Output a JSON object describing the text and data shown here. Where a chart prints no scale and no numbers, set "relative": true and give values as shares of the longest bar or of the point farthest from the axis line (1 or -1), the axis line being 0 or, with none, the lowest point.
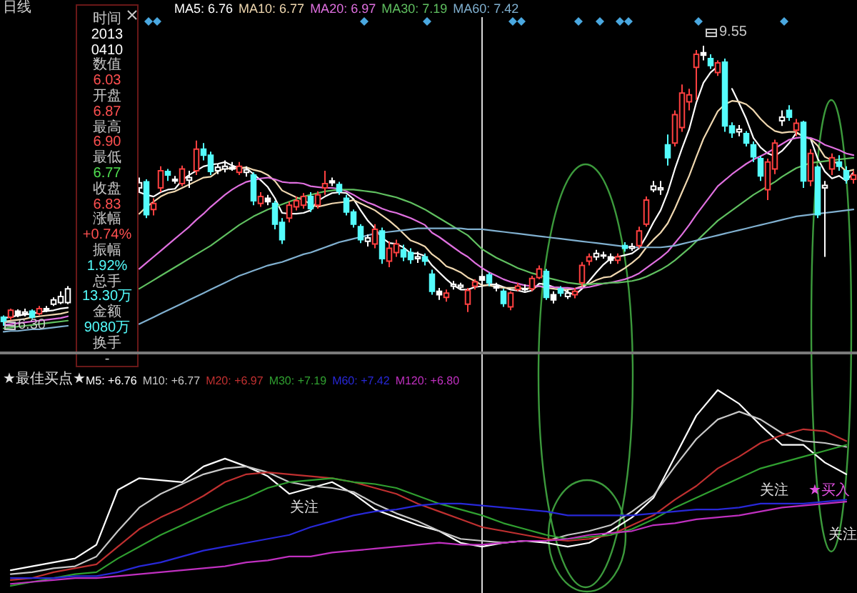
{
  "chart_data": [
    {
      "type": "candlestick",
      "title": "日线",
      "tick_labels": false,
      "legend": "top left",
      "categories": [
        null,
        null,
        null,
        null,
        null,
        null,
        null,
        null,
        null,
        null,
        null,
        null,
        null,
        null,
        null,
        null,
        null,
        null,
        null,
        null,
        null,
        null,
        null,
        null,
        null,
        null,
        null,
        null,
        null,
        null,
        null,
        null,
        null,
        null,
        null,
        null,
        null,
        null,
        null,
        null,
        null,
        null,
        null,
        null,
        null,
        null,
        null,
        null,
        null,
        null,
        null,
        null,
        null,
        null,
        null,
        null,
        null,
        null,
        null,
        null,
        null,
        null,
        null,
        null,
        null,
        null,
        null,
        null,
        null,
        null,
        null,
        null,
        null,
        null,
        null,
        null,
        null,
        null,
        null,
        null,
        null,
        null,
        null,
        null,
        null,
        null,
        null,
        null,
        null,
        null,
        null,
        null,
        null,
        null,
        null,
        null,
        null,
        null,
        null,
        null,
        null,
        null,
        null,
        null,
        null,
        null,
        null,
        null,
        null,
        null,
        null,
        null,
        null,
        null,
        null,
        null,
        null,
        null,
        null,
        null
      ],
      "ohlc": [
        [
          6.4,
          6.42,
          6.3,
          6.35
        ],
        [
          6.4,
          6.5,
          6.37,
          6.48
        ],
        [
          6.47,
          6.49,
          6.4,
          6.42
        ],
        [
          6.44,
          6.5,
          6.41,
          6.46
        ],
        [
          6.47,
          6.49,
          6.38,
          6.4
        ],
        [
          6.44,
          6.53,
          6.42,
          6.5
        ],
        [
          6.5,
          6.53,
          6.46,
          6.48
        ],
        [
          6.55,
          6.63,
          6.53,
          6.6
        ],
        [
          6.57,
          6.7,
          6.55,
          6.64
        ],
        [
          6.57,
          6.76,
          6.55,
          6.73
        ],
        null,
        null,
        null,
        null,
        null,
        null,
        null,
        null,
        null,
        [
          7.9,
          8.02,
          7.85,
          7.96
        ],
        [
          7.97,
          8.0,
          7.55,
          7.59
        ],
        [
          7.65,
          7.78,
          7.58,
          7.72
        ],
        [
          7.9,
          8.15,
          7.85,
          8.1
        ],
        [
          8.09,
          8.12,
          7.98,
          8.05
        ],
        [
          8.0,
          8.04,
          7.95,
          7.98
        ],
        [
          7.95,
          8.16,
          7.92,
          8.12
        ],
        [
          7.99,
          8.1,
          7.9,
          8.02
        ],
        [
          8.1,
          8.45,
          8.05,
          8.35
        ],
        [
          8.35,
          8.42,
          8.22,
          8.28
        ],
        [
          8.28,
          8.32,
          8.05,
          8.09
        ],
        [
          8.1,
          8.18,
          8.06,
          8.14
        ],
        [
          8.12,
          8.22,
          8.08,
          8.15
        ],
        [
          8.14,
          8.2,
          8.1,
          8.12
        ],
        [
          8.08,
          8.2,
          8.05,
          8.15
        ],
        [
          8.08,
          8.15,
          8.03,
          8.11
        ],
        [
          8.05,
          8.08,
          7.7,
          7.75
        ],
        [
          7.72,
          7.85,
          7.68,
          7.8
        ],
        [
          7.78,
          7.82,
          7.7,
          7.74
        ],
        [
          7.72,
          7.75,
          7.42,
          7.48
        ],
        [
          7.5,
          7.55,
          7.25,
          7.3
        ],
        [
          7.55,
          7.74,
          7.5,
          7.7
        ],
        [
          7.68,
          7.8,
          7.64,
          7.75
        ],
        [
          7.7,
          7.84,
          7.66,
          7.8
        ],
        [
          7.8,
          7.85,
          7.62,
          7.66
        ],
        [
          7.7,
          7.86,
          7.66,
          7.82
        ],
        [
          7.9,
          8.1,
          7.82,
          7.95
        ],
        [
          7.98,
          8.02,
          7.92,
          7.96
        ],
        [
          7.94,
          7.97,
          7.82,
          7.86
        ],
        [
          7.78,
          7.82,
          7.58,
          7.62
        ],
        [
          7.62,
          7.65,
          7.44,
          7.48
        ],
        [
          7.45,
          7.48,
          7.26,
          7.3
        ],
        [
          7.28,
          7.36,
          7.22,
          7.32
        ],
        [
          7.25,
          7.48,
          7.2,
          7.42
        ],
        [
          7.4,
          7.44,
          7.02,
          7.08
        ],
        [
          7.05,
          7.28,
          6.98,
          7.2
        ],
        [
          7.15,
          7.3,
          7.1,
          7.25
        ],
        [
          7.18,
          7.24,
          7.05,
          7.1
        ],
        [
          7.15,
          7.2,
          7.02,
          7.07
        ],
        [
          7.08,
          7.16,
          7.03,
          7.1
        ],
        [
          7.1,
          7.14,
          7.0,
          7.05
        ],
        [
          6.9,
          6.95,
          6.66,
          6.7
        ],
        [
          6.7,
          6.74,
          6.6,
          6.66
        ],
        [
          6.63,
          6.72,
          6.58,
          6.68
        ],
        [
          6.76,
          6.82,
          6.72,
          6.78
        ],
        [
          6.75,
          6.8,
          6.72,
          6.77
        ],
        [
          6.55,
          6.74,
          6.46,
          6.71
        ],
        [
          6.76,
          6.84,
          6.72,
          6.81
        ],
        [
          6.87,
          6.9,
          6.77,
          6.83
        ],
        [
          6.89,
          6.92,
          6.76,
          6.8
        ],
        [
          6.76,
          6.8,
          6.7,
          6.74
        ],
        [
          6.7,
          6.73,
          6.52,
          6.56
        ],
        [
          6.52,
          6.7,
          6.48,
          6.68
        ],
        [
          6.72,
          6.8,
          6.7,
          6.76
        ],
        [
          6.73,
          6.78,
          6.7,
          6.72
        ],
        [
          6.73,
          6.88,
          6.7,
          6.85
        ],
        [
          6.86,
          7.0,
          6.84,
          6.96
        ],
        [
          6.93,
          6.96,
          6.6,
          6.63
        ],
        [
          6.66,
          6.7,
          6.56,
          6.6
        ],
        [
          6.73,
          6.76,
          6.64,
          6.68
        ],
        [
          6.64,
          6.72,
          6.61,
          6.68
        ],
        [
          6.66,
          6.74,
          6.62,
          6.7
        ],
        [
          6.8,
          7.04,
          6.76,
          7.0
        ],
        [
          7.05,
          7.14,
          7.0,
          7.1
        ],
        [
          7.1,
          7.18,
          7.06,
          7.14
        ],
        [
          7.12,
          7.16,
          7.08,
          7.11
        ],
        [
          7.1,
          7.14,
          7.02,
          7.06
        ],
        [
          7.06,
          7.14,
          7.02,
          7.1
        ],
        [
          7.23,
          7.27,
          7.16,
          7.2
        ],
        [
          7.2,
          7.26,
          7.17,
          7.22
        ],
        [
          7.23,
          7.45,
          7.2,
          7.4
        ],
        [
          7.48,
          7.8,
          7.45,
          7.76
        ],
        [
          7.88,
          7.98,
          7.85,
          7.92
        ],
        [
          7.88,
          7.98,
          7.82,
          7.9
        ],
        [
          8.4,
          8.52,
          8.16,
          8.25
        ],
        [
          8.42,
          8.8,
          8.38,
          8.75
        ],
        [
          8.6,
          9.1,
          8.55,
          9.0
        ],
        [
          8.9,
          9.05,
          8.8,
          8.98
        ],
        [
          9.3,
          9.5,
          8.92,
          9.45
        ],
        [
          9.47,
          9.55,
          9.38,
          9.44
        ],
        [
          9.4,
          9.45,
          9.28,
          9.32
        ],
        [
          9.24,
          9.38,
          9.2,
          9.35
        ],
        [
          9.36,
          9.4,
          8.55,
          8.62
        ],
        [
          8.62,
          8.66,
          8.48,
          8.54
        ],
        [
          8.55,
          8.63,
          8.5,
          8.58
        ],
        [
          8.53,
          8.56,
          8.38,
          8.42
        ],
        [
          8.4,
          8.44,
          8.2,
          8.26
        ],
        [
          8.24,
          8.27,
          7.98,
          8.04
        ],
        [
          7.88,
          8.24,
          7.76,
          8.2
        ],
        [
          8.12,
          8.46,
          8.06,
          8.42
        ],
        [
          8.68,
          8.8,
          8.62,
          8.72
        ],
        [
          8.8,
          8.86,
          8.68,
          8.72
        ],
        [
          8.57,
          8.7,
          8.5,
          8.65
        ],
        [
          8.66,
          8.68,
          7.9,
          7.98
        ],
        [
          7.98,
          8.35,
          7.92,
          8.3
        ],
        [
          8.14,
          8.16,
          7.55,
          7.59
        ],
        [
          7.9,
          7.98,
          7.1,
          7.93
        ],
        [
          8.12,
          8.3,
          8.05,
          8.25
        ],
        [
          8.2,
          8.28,
          8.1,
          8.15
        ],
        [
          8.1,
          8.15,
          7.95,
          8.0
        ],
        [
          8.0,
          8.1,
          7.95,
          8.05
        ]
      ],
      "colors": [
        "#54fcfc",
        "#ff4040",
        "#ffffff",
        "#ffffff",
        "#54fcfc",
        "#ff4040",
        "#ffffff",
        "#ffffff",
        "#ffffff",
        "#ffffff",
        null,
        null,
        null,
        null,
        null,
        null,
        null,
        null,
        null,
        "#ffffff",
        "#54fcfc",
        "#ff4040",
        "#ff4040",
        "#54fcfc",
        "#ffffff",
        "#ff4040",
        "#ffffff",
        "#ff4040",
        "#54fcfc",
        "#54fcfc",
        "#ffffff",
        "#ffffff",
        "#ffffff",
        "#ff4040",
        "#ffffff",
        "#54fcfc",
        "#ff4040",
        "#ffffff",
        "#54fcfc",
        "#54fcfc",
        "#ff4040",
        "#ff4040",
        "#ff4040",
        "#54fcfc",
        "#ff4040",
        "#ff4040",
        "#ffffff",
        "#54fcfc",
        "#54fcfc",
        "#54fcfc",
        "#54fcfc",
        "#ffffff",
        "#ff4040",
        "#54fcfc",
        "#ff4040",
        "#ff4040",
        "#54fcfc",
        "#54fcfc",
        "#ffffff",
        "#54fcfc",
        "#54fcfc",
        "#ffffff",
        "#ff4040",
        "#ffffff",
        "#ffffff",
        "#ff4040",
        "#ff4040",
        "#ffffff",
        "#54fcfc",
        "#ffffff",
        "#54fcfc",
        "#ff4040",
        "#ff4040",
        "#ffffff",
        "#ff4040",
        "#ff4040",
        "#54fcfc",
        "#ffffff",
        "#54fcfc",
        "#ffffff",
        "#ff4040",
        "#ff4040",
        "#ff4040",
        "#ffffff",
        "#ffffff",
        "#ffffff",
        "#ff4040",
        "#54fcfc",
        "#ffffff",
        "#ff4040",
        "#ff4040",
        "#ffffff",
        "#ffffff",
        "#54fcfc",
        "#ff4040",
        "#ff4040",
        "#ff4040",
        "#ff4040",
        "#ffffff",
        "#54fcfc",
        "#ff4040",
        "#54fcfc",
        "#54fcfc",
        "#ffffff",
        "#54fcfc",
        "#54fcfc",
        "#54fcfc",
        "#ff4040",
        "#ff4040",
        "#ffffff",
        "#54fcfc",
        "#ff4040",
        "#54fcfc",
        "#ff4040",
        "#54fcfc",
        "#ffffff",
        "#ff4040",
        "#54fcfc",
        "#54fcfc",
        "#ff4040"
      ],
      "series": [
        {
          "name": "MA5: 6.76",
          "type": "line",
          "color": "#ffffff",
          "values": [
            6.39,
            6.4,
            6.42,
            6.43,
            6.44,
            6.46,
            6.47,
            6.48,
            6.5,
            6.51,
            null,
            null,
            null,
            null,
            null,
            null,
            null,
            null,
            null,
            7.85,
            7.82,
            7.8,
            7.85,
            7.88,
            7.89,
            7.99,
            8.05,
            8.1,
            8.15,
            8.17,
            8.18,
            8.2,
            8.16,
            8.13,
            8.13,
            8.06,
            7.99,
            7.91,
            7.78,
            7.61,
            7.6,
            7.6,
            7.61,
            7.64,
            7.75,
            7.8,
            7.84,
            7.85,
            7.84,
            7.77,
            7.64,
            7.52,
            7.43,
            7.32,
            7.26,
            7.25,
            7.21,
            7.14,
            7.14,
            7.11,
            7.0,
            6.92,
            6.84,
            6.77,
            6.72,
            6.72,
            6.75,
            6.76,
            6.78,
            6.78,
            6.75,
            6.72,
            6.71,
            6.69,
            6.71,
            6.79,
            6.78,
            6.75,
            6.74,
            6.69,
            6.66,
            6.73,
            6.82,
            6.92,
            7.01,
            7.08,
            7.1,
            7.12,
            7.14,
            7.2,
            7.34,
            7.5,
            7.64,
            7.85,
            8.12,
            8.36,
            8.58,
            8.89,
            9.12,
            9.24,
            9.31,
            null,
            9.05,
            8.88,
            8.7,
            8.48,
            8.37,
            8.3,
            8.27,
            8.33,
            8.42,
            8.54,
            8.5,
            8.47,
            8.24,
            8.09,
            8.01,
            8.04,
            7.98,
            8.08
          ]
        },
        {
          "name": "MA10: 6.77",
          "type": "line",
          "color": "#f0d8b0",
          "values": [
            6.35,
            6.36,
            6.37,
            6.38,
            6.4,
            6.41,
            6.42,
            6.43,
            6.44,
            6.46,
            null,
            null,
            null,
            null,
            null,
            null,
            null,
            null,
            null,
            7.6,
            7.68,
            7.74,
            7.8,
            7.84,
            7.86,
            7.9,
            7.94,
            7.98,
            8.02,
            8.03,
            8.09,
            8.13,
            8.12,
            8.13,
            8.14,
            8.11,
            8.09,
            8.05,
            7.98,
            7.87,
            7.83,
            7.79,
            7.76,
            7.71,
            7.68,
            7.7,
            7.72,
            7.73,
            7.74,
            7.76,
            7.72,
            7.68,
            7.64,
            7.58,
            7.52,
            7.45,
            7.37,
            7.29,
            7.26,
            7.22,
            7.13,
            7.07,
            6.99,
            6.96,
            6.92,
            6.86,
            6.82,
            6.77,
            6.77,
            6.75,
            6.74,
            6.74,
            6.74,
            6.73,
            6.74,
            6.76,
            6.74,
            6.73,
            6.72,
            6.72,
            6.73,
            6.76,
            6.79,
            6.83,
            6.86,
            6.87,
            6.92,
            6.97,
            7.03,
            7.1,
            7.21,
            7.3,
            7.38,
            7.49,
            7.66,
            7.85,
            8.04,
            8.26,
            8.47,
            8.63,
            8.79,
            8.87,
            8.91,
            8.9,
            8.87,
            8.8,
            8.7,
            8.62,
            8.56,
            8.54,
            8.55,
            8.55,
            8.49,
            8.47,
            8.39,
            8.26,
            8.22,
            8.17,
            8.09,
            8.11
          ]
        },
        {
          "name": "MA20: 6.97",
          "type": "line",
          "color": "#e070e0",
          "values": [
            6.31,
            6.32,
            6.33,
            6.34,
            6.35,
            6.36,
            6.37,
            6.38,
            6.39,
            6.41,
            null,
            null,
            null,
            null,
            null,
            null,
            null,
            null,
            null,
            6.96,
            7.03,
            7.1,
            7.17,
            7.24,
            7.31,
            7.38,
            7.45,
            7.53,
            7.6,
            7.68,
            7.75,
            7.82,
            7.88,
            7.93,
            7.97,
            7.99,
            8.01,
            8.02,
            8.0,
            7.97,
            7.96,
            7.96,
            7.95,
            7.92,
            7.91,
            7.9,
            7.9,
            7.89,
            7.86,
            7.82,
            7.77,
            7.73,
            7.7,
            7.66,
            7.63,
            7.61,
            7.58,
            7.55,
            7.51,
            7.47,
            7.38,
            7.33,
            7.27,
            7.21,
            7.15,
            7.1,
            7.03,
            6.97,
            6.92,
            6.88,
            6.84,
            6.81,
            6.79,
            6.77,
            6.76,
            6.76,
            6.75,
            6.75,
            6.74,
            6.74,
            6.73,
            6.74,
            6.75,
            6.77,
            6.79,
            6.8,
            6.82,
            6.84,
            6.87,
            6.91,
            6.97,
            7.03,
            7.09,
            7.16,
            7.26,
            7.36,
            7.47,
            7.59,
            7.7,
            7.81,
            7.92,
            7.99,
            8.06,
            8.12,
            8.18,
            8.23,
            8.27,
            8.31,
            8.36,
            8.41,
            8.46,
            8.48,
            8.49,
            8.48,
            8.45,
            8.4,
            8.37,
            8.34,
            8.3,
            8.28
          ]
        },
        {
          "name": "MA30: 7.19",
          "type": "line",
          "color": "#60c060",
          "values": [
            6.27,
            6.28,
            6.29,
            6.3,
            6.31,
            6.32,
            6.33,
            6.34,
            6.35,
            6.36,
            null,
            null,
            null,
            null,
            null,
            null,
            null,
            null,
            null,
            6.73,
            6.78,
            6.83,
            6.88,
            6.93,
            6.98,
            7.03,
            7.08,
            7.13,
            7.18,
            7.23,
            7.29,
            7.35,
            7.41,
            7.47,
            7.52,
            7.57,
            7.61,
            7.65,
            7.68,
            7.71,
            7.74,
            7.77,
            7.8,
            7.82,
            7.84,
            7.86,
            7.87,
            7.88,
            7.88,
            7.88,
            7.87,
            7.86,
            7.85,
            7.83,
            7.81,
            7.79,
            7.76,
            7.73,
            7.69,
            7.65,
            7.6,
            7.55,
            7.5,
            7.45,
            7.4,
            7.35,
            7.27,
            7.19,
            7.14,
            7.09,
            7.05,
            7.01,
            6.97,
            6.94,
            6.91,
            6.89,
            6.86,
            6.84,
            6.82,
            6.8,
            6.79,
            6.78,
            6.78,
            6.79,
            6.79,
            6.8,
            6.8,
            6.81,
            6.82,
            6.84,
            6.87,
            6.91,
            6.95,
            7.0,
            7.06,
            7.13,
            7.2,
            7.28,
            7.36,
            7.44,
            7.52,
            7.58,
            7.64,
            7.7,
            7.76,
            7.82,
            7.87,
            7.92,
            7.97,
            8.03,
            8.08,
            8.13,
            8.16,
            8.19,
            8.2,
            8.21,
            8.22,
            8.23,
            8.24,
            8.25
          ]
        },
        {
          "name": "MA60: 7.42",
          "type": "line",
          "color": "#80b0d0",
          "values": [
            6.23,
            6.24,
            6.24,
            6.25,
            6.26,
            6.26,
            6.27,
            6.28,
            6.29,
            6.3,
            null,
            null,
            null,
            null,
            null,
            null,
            null,
            null,
            null,
            6.32,
            6.36,
            6.4,
            6.44,
            6.48,
            6.52,
            6.56,
            6.6,
            6.64,
            6.68,
            6.72,
            6.76,
            6.8,
            6.84,
            6.88,
            6.91,
            6.94,
            6.97,
            7.0,
            7.02,
            7.04,
            7.07,
            7.1,
            7.13,
            7.15,
            7.18,
            7.21,
            7.24,
            7.27,
            7.29,
            7.31,
            7.33,
            7.35,
            7.37,
            7.38,
            7.39,
            7.4,
            7.41,
            7.42,
            7.43,
            7.43,
            7.43,
            7.43,
            7.43,
            7.43,
            7.43,
            7.42,
            7.42,
            7.42,
            7.41,
            7.4,
            7.39,
            7.38,
            7.37,
            7.36,
            7.35,
            7.34,
            7.33,
            7.32,
            7.31,
            7.3,
            7.29,
            7.28,
            7.27,
            7.26,
            7.25,
            7.24,
            7.23,
            7.22,
            7.21,
            7.21,
            7.21,
            7.21,
            7.21,
            7.22,
            7.23,
            7.25,
            7.27,
            7.29,
            7.31,
            7.33,
            7.35,
            7.37,
            7.39,
            7.41,
            7.43,
            7.45,
            7.47,
            7.49,
            7.51,
            7.53,
            7.55,
            7.57,
            7.58,
            7.59,
            7.6,
            7.61,
            7.62,
            7.63,
            7.64,
            7.65
          ]
        }
      ],
      "annotations": [
        "时间",
        "2013",
        "0410",
        "数值",
        "6.03",
        "开盘",
        "6.87",
        "最高",
        "6.90",
        "最低",
        "6.77",
        "收盘",
        "6.83",
        "涨幅",
        "+0.74%",
        "振幅",
        "1.92%",
        "总手",
        "13.30万",
        "金额",
        "9080万",
        "换手",
        "-",
        "9.55",
        "6.30"
      ]
    },
    {
      "type": "line",
      "title": "★最佳买点★",
      "relative": true,
      "tick_labels": false,
      "legend": "top left",
      "categories": [
        null,
        null,
        null,
        null,
        null,
        null,
        null,
        null,
        null,
        null,
        null,
        null,
        null,
        null,
        null,
        null,
        null,
        null,
        null,
        null,
        null,
        null,
        null,
        null,
        null,
        null,
        null,
        null,
        null,
        null,
        null,
        null,
        null,
        null,
        null,
        null,
        null,
        null,
        null,
        null
      ],
      "series": [
        {
          "name": "M5: +6.76",
          "color": "#ffffff",
          "values": [
            0.08,
            0.1,
            0.12,
            0.14,
            0.21,
            0.49,
            0.55,
            0.54,
            0.53,
            0.61,
            0.65,
            0.61,
            0.56,
            0.47,
            0.5,
            0.53,
            0.47,
            0.39,
            0.35,
            0.31,
            0.28,
            0.22,
            0.2,
            0.22,
            0.23,
            0.22,
            0.2,
            0.22,
            0.28,
            0.35,
            0.45,
            0.66,
            0.87,
            1.0,
            0.93,
            0.82,
            0.72,
            0.72,
            0.63,
            0.57
          ]
        },
        {
          "name": "M10: +6.77",
          "color": "#c8c8c8",
          "values": [
            0.06,
            0.07,
            0.09,
            0.1,
            0.15,
            0.28,
            0.4,
            0.47,
            0.52,
            0.57,
            0.6,
            0.61,
            0.58,
            0.53,
            0.51,
            0.5,
            0.48,
            0.42,
            0.37,
            0.33,
            0.28,
            0.24,
            0.23,
            0.22,
            0.23,
            0.23,
            0.26,
            0.28,
            0.31,
            0.38,
            0.46,
            0.61,
            0.75,
            0.85,
            0.89,
            0.85,
            0.78,
            0.74,
            0.73,
            0.71
          ]
        },
        {
          "name": "M20: +6.97",
          "color": "#c03030",
          "values": [
            0.03,
            0.04,
            0.07,
            0.09,
            0.11,
            0.2,
            0.29,
            0.35,
            0.4,
            0.46,
            0.53,
            0.57,
            0.58,
            0.57,
            0.56,
            0.55,
            0.53,
            0.5,
            0.47,
            0.42,
            0.38,
            0.34,
            0.3,
            0.28,
            0.26,
            0.24,
            0.23,
            0.24,
            0.26,
            0.31,
            0.36,
            0.44,
            0.51,
            0.6,
            0.66,
            0.73,
            0.77,
            0.8,
            0.79,
            0.74
          ]
        },
        {
          "name": "M30: +7.19",
          "color": "#30a030",
          "values": [
            0,
            0.02,
            0.04,
            0.06,
            0.07,
            0.14,
            0.2,
            0.26,
            0.31,
            0.36,
            0.41,
            0.45,
            0.5,
            0.53,
            0.54,
            0.55,
            0.53,
            0.52,
            0.5,
            0.46,
            0.42,
            0.39,
            0.36,
            0.32,
            0.29,
            0.26,
            0.24,
            0.25,
            0.26,
            0.29,
            0.34,
            0.4,
            0.45,
            0.5,
            0.55,
            0.6,
            0.63,
            0.66,
            0.69,
            0.72
          ]
        },
        {
          "name": "M60: +7.42",
          "color": "#2828d8",
          "values": [
            0.04,
            0.04,
            0.04,
            0.05,
            0.05,
            0.07,
            0.1,
            0.12,
            0.15,
            0.18,
            0.2,
            0.22,
            0.24,
            0.26,
            0.3,
            0.33,
            0.36,
            0.38,
            0.39,
            0.41,
            0.42,
            0.42,
            0.41,
            0.4,
            0.39,
            0.38,
            0.36,
            0.36,
            0.36,
            0.36,
            0.37,
            0.38,
            0.39,
            0.39,
            0.4,
            0.42,
            0.42,
            0.42,
            0.43,
            0.44
          ]
        },
        {
          "name": "M120: +6.80",
          "color": "#c030c0",
          "values": [
            0.01,
            0.02,
            0.03,
            0.04,
            0.04,
            0.05,
            0.06,
            0.07,
            0.08,
            0.09,
            0.1,
            0.12,
            0.13,
            0.15,
            0.15,
            0.17,
            0.18,
            0.19,
            0.2,
            0.21,
            0.22,
            0.21,
            0.21,
            0.22,
            0.23,
            0.23,
            0.24,
            0.26,
            0.27,
            0.28,
            0.31,
            0.32,
            0.34,
            0.35,
            0.36,
            0.38,
            0.4,
            0.41,
            0.42,
            0.43
          ]
        }
      ],
      "annotations": [
        "关注",
        "关注",
        "关注",
        "★买入"
      ]
    }
  ]
}
